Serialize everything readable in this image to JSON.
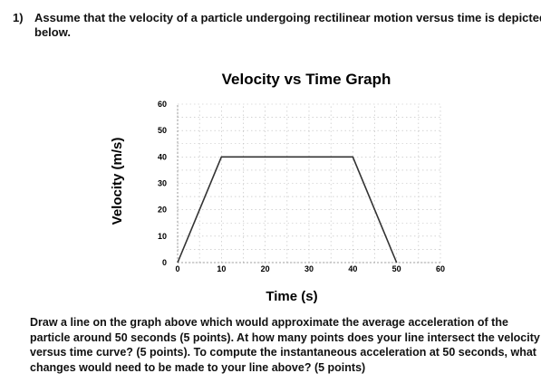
{
  "question": {
    "number": "1)",
    "text_lines": [
      "Assume that the velocity of a particle undergoing rectilinear motion versus time is depicted",
      "below."
    ]
  },
  "chart_data": {
    "type": "line",
    "title": "Velocity vs Time Graph",
    "xlabel": "Time (s)",
    "ylabel": "Velocity (m/s)",
    "xlim": [
      0,
      60
    ],
    "ylim": [
      0,
      60
    ],
    "x_ticks": [
      0,
      10,
      20,
      30,
      40,
      50,
      60
    ],
    "y_ticks": [
      0,
      10,
      20,
      30,
      40,
      50,
      60
    ],
    "grid": true,
    "series": [
      {
        "x": [
          0,
          10,
          40,
          50
        ],
        "y": [
          0,
          40,
          40,
          0
        ]
      }
    ],
    "colors": {
      "line": "#333333",
      "grid": "#bbbbbb"
    }
  },
  "instructions": [
    "Draw a line on the graph above which would approximate the average acceleration of the",
    "particle around 50 seconds (5 points). At how many points does your line intersect the velocity",
    "versus time curve? (5 points). To compute the instantaneous acceleration at 50 seconds, what",
    "changes would need to be made to your line above? (5 points)"
  ]
}
